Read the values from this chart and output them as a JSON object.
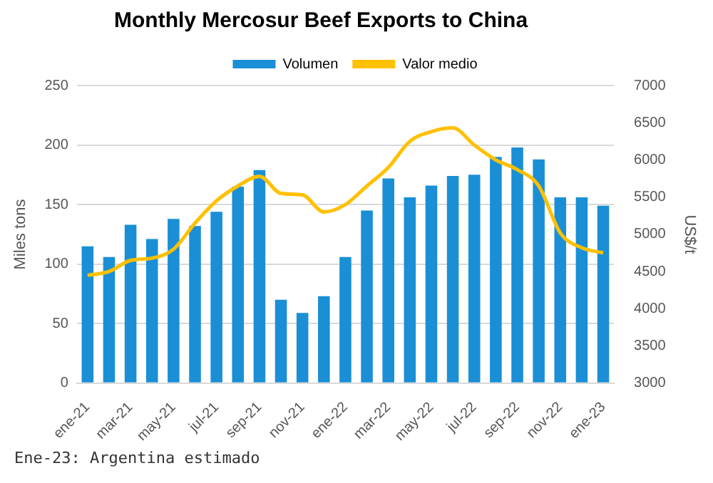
{
  "chart_data": {
    "type": "bar",
    "title": "Monthly Mercosur Beef Exports to China",
    "categories": [
      "ene-21",
      null,
      "mar-21",
      null,
      "may-21",
      null,
      "jul-21",
      null,
      "sep-21",
      null,
      "nov-21",
      null,
      "ene-22",
      null,
      "mar-22",
      null,
      "may-22",
      null,
      "jul-22",
      null,
      "sep-22",
      null,
      "nov-22",
      null,
      "ene-23"
    ],
    "series": [
      {
        "name": "Volumen",
        "color": "#1a8fd6",
        "values": [
          115,
          106,
          133,
          121,
          138,
          132,
          144,
          165,
          179,
          70,
          59,
          73,
          106,
          145,
          172,
          156,
          166,
          174,
          175,
          190,
          198,
          188,
          156,
          156,
          149
        ]
      },
      {
        "name": "Valor medio",
        "color": "#ffc000",
        "type": "line",
        "axis": "y2",
        "values": [
          4450,
          4500,
          4650,
          4680,
          4800,
          5150,
          5450,
          5650,
          5780,
          5550,
          5530,
          5300,
          5400,
          5650,
          5900,
          6250,
          6380,
          6430,
          6200,
          6000,
          5870,
          5650,
          5020,
          4820,
          4750
        ]
      }
    ],
    "ylabel": "Miles tons",
    "y2label": "US$/t",
    "ylim": [
      0,
      250
    ],
    "yticks": [
      0,
      50,
      100,
      150,
      200,
      250
    ],
    "y2lim": [
      3000,
      7000
    ],
    "y2ticks": [
      3000,
      3500,
      4000,
      4500,
      5000,
      5500,
      6000,
      6500,
      7000
    ],
    "grid": "y",
    "legend": "top",
    "marker": "none",
    "line_style": "solid",
    "annotations": [
      "Ene-23: Argentina estimado"
    ]
  }
}
